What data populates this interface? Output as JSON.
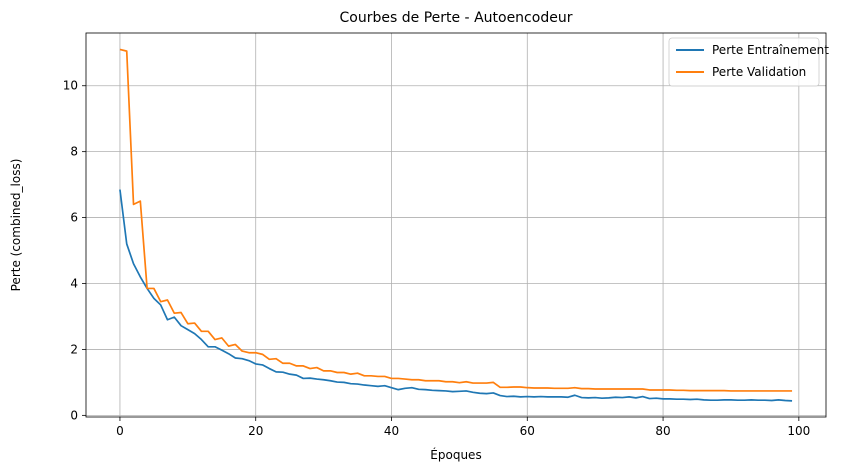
{
  "chart_data": {
    "type": "line",
    "title": "Courbes de Perte - Autoencodeur",
    "xlabel": "Époques",
    "ylabel": "Perte (combined_loss)",
    "xlim": [
      -5,
      104
    ],
    "ylim": [
      -0.05,
      11.6
    ],
    "xticks": [
      0,
      20,
      40,
      60,
      80,
      100
    ],
    "yticks": [
      0,
      2,
      4,
      6,
      8,
      10
    ],
    "grid": true,
    "legend_position": "upper right",
    "x": [
      0,
      1,
      2,
      3,
      4,
      5,
      6,
      7,
      8,
      9,
      10,
      11,
      12,
      13,
      14,
      15,
      16,
      17,
      18,
      19,
      20,
      21,
      22,
      23,
      24,
      25,
      26,
      27,
      28,
      29,
      30,
      31,
      32,
      33,
      34,
      35,
      36,
      37,
      38,
      39,
      40,
      41,
      42,
      43,
      44,
      45,
      46,
      47,
      48,
      49,
      50,
      51,
      52,
      53,
      54,
      55,
      56,
      57,
      58,
      59,
      60,
      61,
      62,
      63,
      64,
      65,
      66,
      67,
      68,
      69,
      70,
      71,
      72,
      73,
      74,
      75,
      76,
      77,
      78,
      79,
      80,
      81,
      82,
      83,
      84,
      85,
      86,
      87,
      88,
      89,
      90,
      91,
      92,
      93,
      94,
      95,
      96,
      97,
      98,
      99
    ],
    "series": [
      {
        "name": "Perte Entraînement",
        "color": "#1f77b4",
        "values": [
          6.85,
          5.2,
          4.6,
          4.2,
          3.85,
          3.55,
          3.35,
          2.9,
          2.98,
          2.72,
          2.6,
          2.48,
          2.3,
          2.08,
          2.08,
          1.98,
          1.87,
          1.74,
          1.72,
          1.66,
          1.56,
          1.53,
          1.42,
          1.32,
          1.31,
          1.25,
          1.22,
          1.12,
          1.13,
          1.1,
          1.08,
          1.05,
          1.01,
          1.0,
          0.96,
          0.95,
          0.92,
          0.9,
          0.88,
          0.9,
          0.84,
          0.78,
          0.82,
          0.84,
          0.79,
          0.78,
          0.76,
          0.75,
          0.74,
          0.72,
          0.73,
          0.74,
          0.7,
          0.67,
          0.66,
          0.68,
          0.6,
          0.57,
          0.58,
          0.56,
          0.57,
          0.56,
          0.57,
          0.56,
          0.56,
          0.56,
          0.55,
          0.61,
          0.54,
          0.53,
          0.54,
          0.52,
          0.53,
          0.55,
          0.54,
          0.56,
          0.53,
          0.57,
          0.51,
          0.52,
          0.5,
          0.5,
          0.49,
          0.49,
          0.48,
          0.49,
          0.47,
          0.46,
          0.46,
          0.47,
          0.47,
          0.46,
          0.46,
          0.47,
          0.46,
          0.46,
          0.45,
          0.47,
          0.45,
          0.44
        ]
      },
      {
        "name": "Perte Validation",
        "color": "#ff7f0e",
        "values": [
          11.1,
          11.05,
          6.4,
          6.5,
          3.85,
          3.85,
          3.45,
          3.5,
          3.1,
          3.12,
          2.78,
          2.8,
          2.55,
          2.55,
          2.3,
          2.35,
          2.1,
          2.15,
          1.95,
          1.9,
          1.9,
          1.85,
          1.7,
          1.72,
          1.58,
          1.58,
          1.5,
          1.5,
          1.42,
          1.45,
          1.35,
          1.35,
          1.3,
          1.3,
          1.25,
          1.28,
          1.2,
          1.2,
          1.18,
          1.18,
          1.12,
          1.12,
          1.1,
          1.08,
          1.08,
          1.05,
          1.05,
          1.05,
          1.02,
          1.02,
          0.99,
          1.02,
          0.98,
          0.98,
          0.98,
          1.0,
          0.85,
          0.85,
          0.86,
          0.86,
          0.84,
          0.83,
          0.83,
          0.83,
          0.82,
          0.82,
          0.82,
          0.84,
          0.81,
          0.81,
          0.8,
          0.8,
          0.8,
          0.8,
          0.8,
          0.8,
          0.8,
          0.8,
          0.77,
          0.77,
          0.77,
          0.77,
          0.76,
          0.76,
          0.75,
          0.75,
          0.75,
          0.75,
          0.75,
          0.75,
          0.74,
          0.74,
          0.74,
          0.74,
          0.74,
          0.74,
          0.74,
          0.74,
          0.74,
          0.74
        ]
      }
    ]
  }
}
